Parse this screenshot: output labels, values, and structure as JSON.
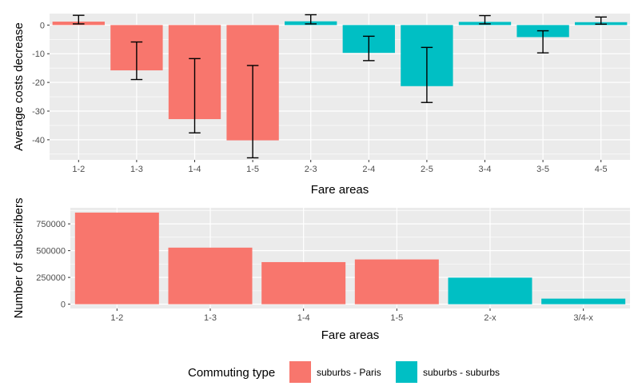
{
  "colors": {
    "suburbs_paris": "#F8766D",
    "suburbs_suburbs": "#00BFC4",
    "panel": "#EBEBEB",
    "grid": "#FFFFFF"
  },
  "legend": {
    "title": "Commuting type",
    "items": [
      {
        "label": "suburbs - Paris",
        "color": "#F8766D"
      },
      {
        "label": "suburbs - suburbs",
        "color": "#00BFC4"
      }
    ]
  },
  "chart_data": [
    {
      "type": "bar",
      "xlabel": "Fare areas",
      "ylabel": "Average costs decrease",
      "ylim": [
        -47,
        4
      ],
      "yticks": [
        0,
        -10,
        -20,
        -30,
        -40
      ],
      "grid": true,
      "categories": [
        "1-2",
        "1-3",
        "1-4",
        "1-5",
        "2-3",
        "2-4",
        "2-5",
        "3-4",
        "3-5",
        "4-5"
      ],
      "values": [
        1.2,
        -15.8,
        -32.8,
        -40.2,
        1.3,
        -9.7,
        -21.3,
        1.1,
        -4.2,
        1.0
      ],
      "error_low": [
        0.4,
        -19.0,
        -37.6,
        -46.3,
        0.4,
        -12.4,
        -27.0,
        0.4,
        -9.7,
        0.3
      ],
      "error_high": [
        3.4,
        -5.9,
        -11.7,
        -14.1,
        3.6,
        -3.9,
        -7.8,
        3.3,
        -2.0,
        2.8
      ],
      "commuting_type": [
        "suburbs - Paris",
        "suburbs - Paris",
        "suburbs - Paris",
        "suburbs - Paris",
        "suburbs - suburbs",
        "suburbs - suburbs",
        "suburbs - suburbs",
        "suburbs - suburbs",
        "suburbs - suburbs",
        "suburbs - suburbs"
      ]
    },
    {
      "type": "bar",
      "xlabel": "Fare areas",
      "ylabel": "Number of subscribers",
      "ylim": [
        -40000,
        900000
      ],
      "yticks": [
        0,
        250000,
        500000,
        750000
      ],
      "grid": true,
      "categories": [
        "1-2",
        "1-3",
        "1-4",
        "1-5",
        "2-x",
        "3/4-x"
      ],
      "values": [
        855000,
        528000,
        393000,
        418000,
        248000,
        52000
      ],
      "commuting_type": [
        "suburbs - Paris",
        "suburbs - Paris",
        "suburbs - Paris",
        "suburbs - Paris",
        "suburbs - suburbs",
        "suburbs - suburbs"
      ]
    }
  ]
}
